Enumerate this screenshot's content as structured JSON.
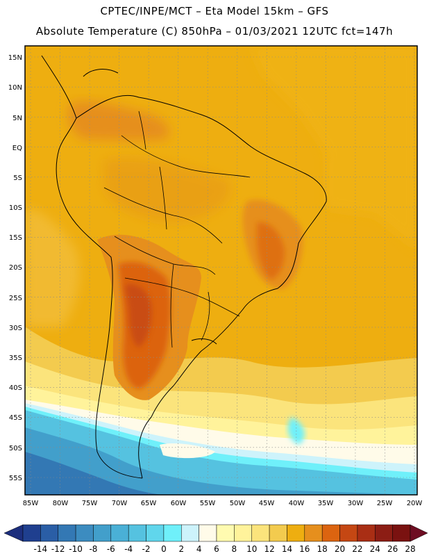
{
  "header": {
    "line1": "CPTEC/INPE/MCT –  Eta Model 15km – GFS",
    "line2": "Absolute Temperature (C) 850hPa – 01/03/2021 12UTC fct=147h"
  },
  "axes": {
    "lat_labels": [
      "15N",
      "10N",
      "5N",
      "EQ",
      "5S",
      "10S",
      "15S",
      "20S",
      "25S",
      "30S",
      "35S",
      "40S",
      "45S",
      "50S",
      "55S"
    ],
    "lon_labels": [
      "85W",
      "80W",
      "75W",
      "70W",
      "65W",
      "60W",
      "55W",
      "50W",
      "45W",
      "40W",
      "35W",
      "30W",
      "25W",
      "20W"
    ],
    "grid": "dotted"
  },
  "colorbar": {
    "ticks": [
      "-14",
      "-12",
      "-10",
      "-8",
      "-6",
      "-4",
      "-2",
      "0",
      "2",
      "4",
      "6",
      "8",
      "10",
      "12",
      "14",
      "16",
      "18",
      "20",
      "22",
      "24",
      "26",
      "28"
    ],
    "colors": [
      "#1f3f8f",
      "#2a5ea6",
      "#3378b4",
      "#3c8cc0",
      "#429fcb",
      "#4ab0d6",
      "#55c2e0",
      "#60d6ec",
      "#6ff0fa",
      "#cdf3fb",
      "#fffbe9",
      "#fffbb0",
      "#fff39b",
      "#fbe47c",
      "#f3cb4e",
      "#eeae10",
      "#e68f1d",
      "#dc6410",
      "#c54713",
      "#a92e14",
      "#8c1d14",
      "#7a1210"
    ],
    "under_color": "#1c2e7d",
    "over_color": "#6e0d22"
  }
}
